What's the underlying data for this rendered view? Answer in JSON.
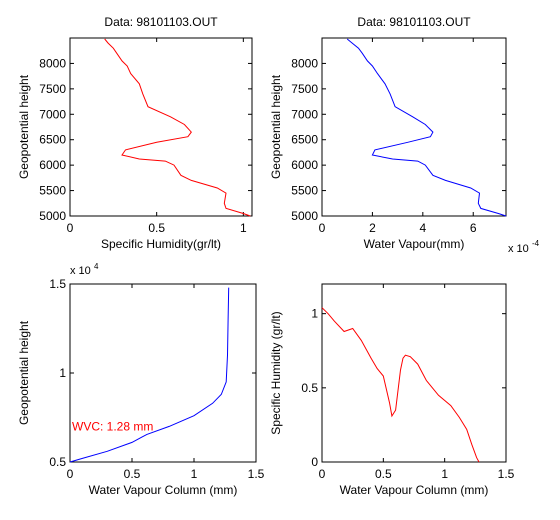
{
  "chart_data": [
    {
      "type": "line",
      "title": "Data: 98101103.OUT",
      "xlabel": "Specific Humidity(gr/lt)",
      "ylabel": "Geopotential height",
      "xlim": [
        0,
        1.05
      ],
      "ylim": [
        5000,
        8500
      ],
      "xticks": [
        0,
        0.5,
        1
      ],
      "xtick_labels": [
        "0",
        "0.5",
        "1"
      ],
      "yticks": [
        5000,
        5500,
        6000,
        6500,
        7000,
        7500,
        8000
      ],
      "ytick_labels": [
        "5000",
        "5500",
        "6000",
        "6500",
        "7000",
        "7500",
        "8000"
      ],
      "color": "#ff0000",
      "series": [
        {
          "x": [
            1.04,
            1.0,
            0.9,
            0.89,
            0.9,
            0.85,
            0.7,
            0.64,
            0.6,
            0.55,
            0.4,
            0.3,
            0.32,
            0.5,
            0.68,
            0.7,
            0.66,
            0.58,
            0.45,
            0.42,
            0.4,
            0.35,
            0.33,
            0.3,
            0.27,
            0.25,
            0.22,
            0.2
          ],
          "y": [
            5000,
            5050,
            5150,
            5250,
            5450,
            5550,
            5700,
            5800,
            6000,
            6080,
            6120,
            6200,
            6300,
            6450,
            6560,
            6650,
            6800,
            6950,
            7150,
            7400,
            7600,
            7800,
            7950,
            8050,
            8200,
            8300,
            8400,
            8480
          ]
        }
      ]
    },
    {
      "type": "line",
      "title": "Data: 98101103.OUT",
      "xlabel": "Water Vapour(mm)",
      "x_multiplier": "x 10",
      "x_multiplier_exp": "-4",
      "ylabel": "Geopotential height",
      "xlim": [
        0,
        7.3
      ],
      "ylim": [
        5000,
        8500
      ],
      "xticks": [
        0,
        2,
        4,
        6
      ],
      "xtick_labels": [
        "0",
        "2",
        "4",
        "6"
      ],
      "yticks": [
        5000,
        5500,
        6000,
        6500,
        7000,
        7500,
        8000
      ],
      "ytick_labels": [
        "5000",
        "5500",
        "6000",
        "6500",
        "7000",
        "7500",
        "8000"
      ],
      "color": "#0000ff",
      "series": [
        {
          "x": [
            7.3,
            7.0,
            6.3,
            6.2,
            6.25,
            5.9,
            4.9,
            4.4,
            4.1,
            3.8,
            2.8,
            2.0,
            2.1,
            3.4,
            4.3,
            4.4,
            4.1,
            3.6,
            2.9,
            2.7,
            2.5,
            2.2,
            2.0,
            1.8,
            1.6,
            1.45,
            1.2,
            1.0
          ],
          "y": [
            5000,
            5050,
            5150,
            5250,
            5450,
            5550,
            5700,
            5800,
            6000,
            6080,
            6120,
            6200,
            6300,
            6450,
            6560,
            6650,
            6800,
            6950,
            7150,
            7400,
            7600,
            7800,
            7950,
            8050,
            8200,
            8300,
            8400,
            8480
          ]
        }
      ]
    },
    {
      "type": "line",
      "xlabel": "Water Vapour Column (mm)",
      "ylabel": "Geopotential height",
      "y_multiplier": "x 10",
      "y_multiplier_exp": "4",
      "xlim": [
        0,
        1.5
      ],
      "ylim": [
        0.5,
        1.5
      ],
      "xticks": [
        0,
        0.5,
        1,
        1.5
      ],
      "xtick_labels": [
        "0",
        "0.5",
        "1",
        "1.5"
      ],
      "yticks": [
        0.5,
        1,
        1.5
      ],
      "ytick_labels": [
        "0.5",
        "1",
        "1.5"
      ],
      "annotation": "WVC: 1.28 mm",
      "color": "#0000ff",
      "series": [
        {
          "x": [
            0.0,
            0.1,
            0.3,
            0.5,
            0.58,
            0.62,
            0.8,
            1.0,
            1.15,
            1.22,
            1.26,
            1.27,
            1.275,
            1.28
          ],
          "y": [
            0.5,
            0.52,
            0.56,
            0.61,
            0.64,
            0.655,
            0.7,
            0.76,
            0.83,
            0.88,
            0.95,
            1.1,
            1.3,
            1.48
          ]
        }
      ]
    },
    {
      "type": "line",
      "xlabel": "Water Vapour Column (mm)",
      "ylabel": "Specific Humidity (gr/lt)",
      "xlim": [
        0,
        1.5
      ],
      "ylim": [
        0,
        1.2
      ],
      "xticks": [
        0,
        0.5,
        1,
        1.5
      ],
      "xtick_labels": [
        "0",
        "0.5",
        "1",
        "1.5"
      ],
      "yticks": [
        0,
        0.5,
        1
      ],
      "ytick_labels": [
        "0",
        "0.5",
        "1"
      ],
      "color": "#ff0000",
      "series": [
        {
          "x": [
            0.0,
            0.05,
            0.1,
            0.18,
            0.25,
            0.32,
            0.4,
            0.45,
            0.5,
            0.55,
            0.57,
            0.6,
            0.64,
            0.66,
            0.68,
            0.72,
            0.78,
            0.85,
            0.95,
            1.05,
            1.12,
            1.18,
            1.22,
            1.26,
            1.28
          ],
          "y": [
            1.04,
            1.0,
            0.95,
            0.88,
            0.9,
            0.82,
            0.7,
            0.63,
            0.58,
            0.4,
            0.31,
            0.35,
            0.62,
            0.7,
            0.72,
            0.71,
            0.66,
            0.55,
            0.45,
            0.38,
            0.3,
            0.22,
            0.12,
            0.03,
            0.0
          ]
        }
      ]
    }
  ]
}
